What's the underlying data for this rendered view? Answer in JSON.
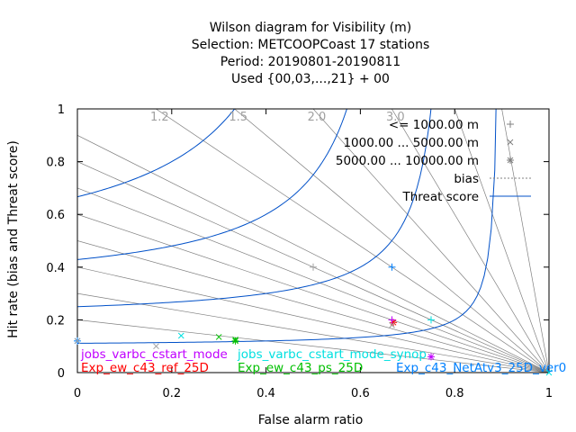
{
  "chart_data": {
    "type": "scatter",
    "title": [
      "Wilson diagram  for Visibility (m)",
      "Selection: METCOOPCoast     17 stations",
      "Period: 20190801-20190811",
      "Used {00,03,...,21} + 00"
    ],
    "xlabel": "False alarm ratio",
    "ylabel": "Hit rate (bias and Threat score)",
    "xlim": [
      0,
      1
    ],
    "ylim": [
      0,
      1
    ],
    "xticks": [
      "0",
      "0.2",
      "0.4",
      "0.6",
      "0.8",
      "1"
    ],
    "yticks": [
      "0",
      "0.2",
      "0.4",
      "0.6",
      "0.8",
      "1"
    ],
    "bias_values": [
      0.2,
      0.3,
      0.4,
      0.5,
      0.6,
      0.7,
      0.8,
      0.9,
      1.2,
      1.5,
      2.0,
      3.0,
      5.0,
      10.0
    ],
    "bias_labels": [
      {
        "bias": 1.2,
        "text": "1.2"
      },
      {
        "bias": 1.5,
        "text": "1.5"
      },
      {
        "bias": 2.0,
        "text": "2.0"
      },
      {
        "bias": 3.0,
        "text": "3.0"
      }
    ],
    "threat_scores": [
      0.1,
      0.2,
      0.3,
      0.4,
      0.5,
      0.6,
      0.7,
      0.8,
      0.9
    ],
    "legend": [
      {
        "label": "<= 1000.00 m",
        "marker": "plus"
      },
      {
        "label": "1000.00 ... 5000.00 m",
        "marker": "cross"
      },
      {
        "label": "5000.00 ... 10000.00 m",
        "marker": "star"
      },
      {
        "label": "bias",
        "line": "dotted"
      },
      {
        "label": "Threat score",
        "line": "solid"
      }
    ],
    "series": [
      {
        "name": "Exp_ew_c43_ref_25D",
        "color": "#ff0000",
        "points": [
          {
            "x": 0.67,
            "y": 0.19,
            "m": "star"
          }
        ]
      },
      {
        "name": "Exp_ew_c43_ps_25D",
        "color": "#00c000",
        "points": [
          {
            "x": 0.3,
            "y": 0.135,
            "m": "cross"
          },
          {
            "x": 0.335,
            "y": 0.125,
            "m": "cross"
          },
          {
            "x": 0.335,
            "y": 0.12,
            "m": "star"
          }
        ]
      },
      {
        "name": "Exp_c43_NetAtv3_25D_ver0",
        "color": "#0080ff",
        "points": [
          {
            "x": 0.667,
            "y": 0.4,
            "m": "plus"
          },
          {
            "x": 0.0,
            "y": 0.12,
            "m": "star"
          }
        ]
      },
      {
        "name": "jobs_varbc_cstart_mode",
        "color": "#c000ff",
        "points": [
          {
            "x": 0.667,
            "y": 0.2,
            "m": "plus"
          },
          {
            "x": 0.75,
            "y": 0.06,
            "m": "star"
          }
        ]
      },
      {
        "name": "jobs_varbc_cstart_mode_synop",
        "color": "#00e0e0",
        "points": [
          {
            "x": 0.75,
            "y": 0.2,
            "m": "plus"
          },
          {
            "x": 0.22,
            "y": 0.14,
            "m": "cross"
          },
          {
            "x": 1.0,
            "y": 0.0,
            "m": "cross"
          }
        ]
      },
      {
        "name": "",
        "color": "#a0a0a0",
        "points": [
          {
            "x": 0.5,
            "y": 0.4,
            "m": "plus"
          },
          {
            "x": 0.667,
            "y": 0.18,
            "m": "cross"
          },
          {
            "x": 0.167,
            "y": 0.1,
            "m": "cross"
          },
          {
            "x": 0.0,
            "y": 0.12,
            "m": "cross"
          }
        ]
      }
    ],
    "series_labels": [
      {
        "text": "jobs_varbc_cstart_mode",
        "color": "#c000ff"
      },
      {
        "text": "jobs_varbc_cstart_mode_synop",
        "color": "#00e0e0"
      },
      {
        "text": "Exp_ew_c43_ref_25D",
        "color": "#ff0000"
      },
      {
        "text": "Exp_ew_c43_ps_25D",
        "color": "#00c000"
      },
      {
        "text": "Exp_c43_NetAtv3_25D_ver0",
        "color": "#0080ff"
      }
    ],
    "colors": {
      "threat": "#0050c8",
      "bias": "#808080",
      "axis": "#000000"
    }
  }
}
